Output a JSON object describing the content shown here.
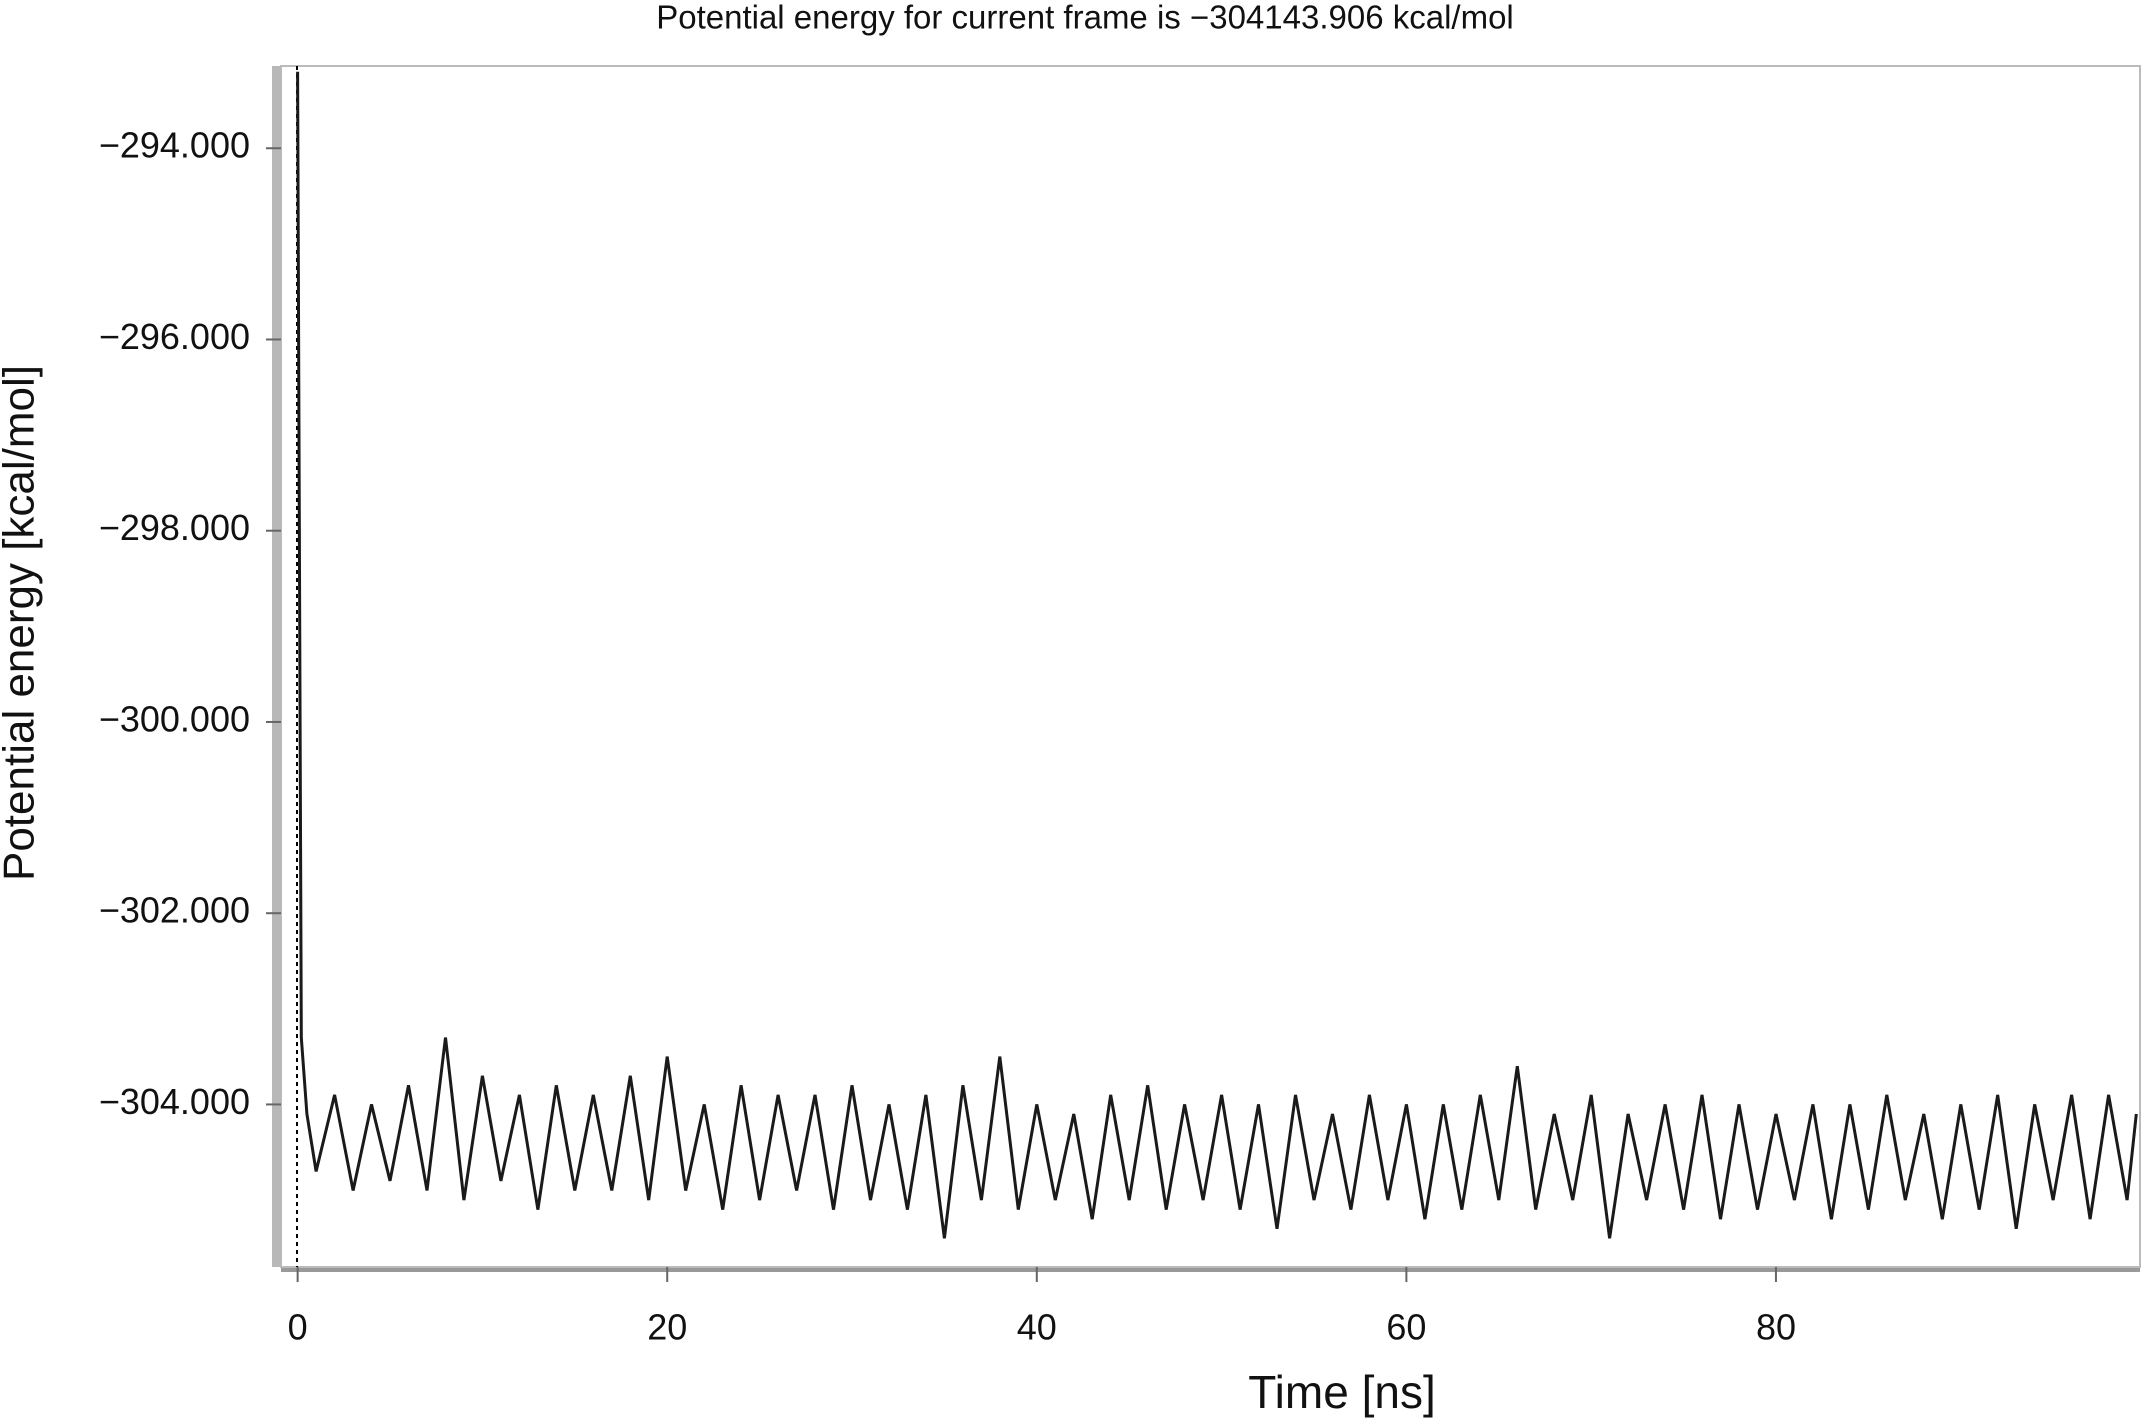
{
  "chart_data": {
    "type": "line",
    "title": "Potential energy for current frame is −304143.906 kcal/mol",
    "x_label": "Time [ns]",
    "y_label": "Potential energy [kcal/mol]",
    "color": "#1a1a1a",
    "xlim": [
      -0.9,
      99.7
    ],
    "ylim": [
      -305700,
      -293140
    ],
    "xticks": [
      0,
      20,
      40,
      60,
      80
    ],
    "yticks": [
      {
        "value": -294000,
        "label": "−294.000"
      },
      {
        "value": -296000,
        "label": "−296.000"
      },
      {
        "value": -298000,
        "label": "−298.000"
      },
      {
        "value": -300000,
        "label": "−300.000"
      },
      {
        "value": -302000,
        "label": "−302.000"
      },
      {
        "value": -304000,
        "label": "−304.000"
      }
    ],
    "x": [
      0,
      0.2,
      0.5,
      1,
      2,
      3,
      4,
      5,
      6,
      7,
      8,
      9,
      10,
      11,
      12,
      13,
      14,
      15,
      16,
      17,
      18,
      19,
      20,
      21,
      22,
      23,
      24,
      25,
      26,
      27,
      28,
      29,
      30,
      31,
      32,
      33,
      34,
      35,
      36,
      37,
      38,
      39,
      40,
      41,
      42,
      43,
      44,
      45,
      46,
      47,
      48,
      49,
      50,
      51,
      52,
      53,
      54,
      55,
      56,
      57,
      58,
      59,
      60,
      61,
      62,
      63,
      64,
      65,
      66,
      67,
      68,
      69,
      70,
      71,
      72,
      73,
      74,
      75,
      76,
      77,
      78,
      79,
      80,
      81,
      82,
      83,
      84,
      85,
      86,
      87,
      88,
      89,
      90,
      91,
      92,
      93,
      94,
      95,
      96,
      97,
      98,
      99,
      99.5
    ],
    "values": [
      -293200,
      -303300,
      -304100,
      -304700,
      -303900,
      -304900,
      -304000,
      -304800,
      -303800,
      -304900,
      -303300,
      -305000,
      -303700,
      -304800,
      -303900,
      -305100,
      -303800,
      -304900,
      -303900,
      -304900,
      -303700,
      -305000,
      -303500,
      -304900,
      -304000,
      -305100,
      -303800,
      -305000,
      -303900,
      -304900,
      -303900,
      -305100,
      -303800,
      -305000,
      -304000,
      -305100,
      -303900,
      -305400,
      -303800,
      -305000,
      -303500,
      -305100,
      -304000,
      -305000,
      -304100,
      -305200,
      -303900,
      -305000,
      -303800,
      -305100,
      -304000,
      -305000,
      -303900,
      -305100,
      -304000,
      -305300,
      -303900,
      -305000,
      -304100,
      -305100,
      -303900,
      -305000,
      -304000,
      -305200,
      -304000,
      -305100,
      -303900,
      -305000,
      -303600,
      -305100,
      -304100,
      -305000,
      -303900,
      -305400,
      -304100,
      -305000,
      -304000,
      -305100,
      -303900,
      -305200,
      -304000,
      -305100,
      -304100,
      -305000,
      -304000,
      -305200,
      -304000,
      -305100,
      -303900,
      -305000,
      -304100,
      -305200,
      -304000,
      -305100,
      -303900,
      -305300,
      -304000,
      -305000,
      -303900,
      -305200,
      -303900,
      -305000,
      -304100
    ]
  }
}
